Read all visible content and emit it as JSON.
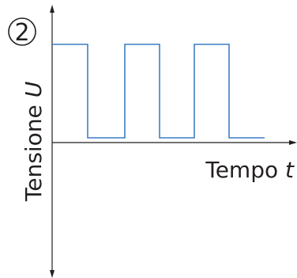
{
  "badge": "2",
  "y_axis": {
    "label": "Tensione",
    "symbol": "U"
  },
  "x_axis": {
    "label": "Tempo",
    "symbol": "t"
  }
}
